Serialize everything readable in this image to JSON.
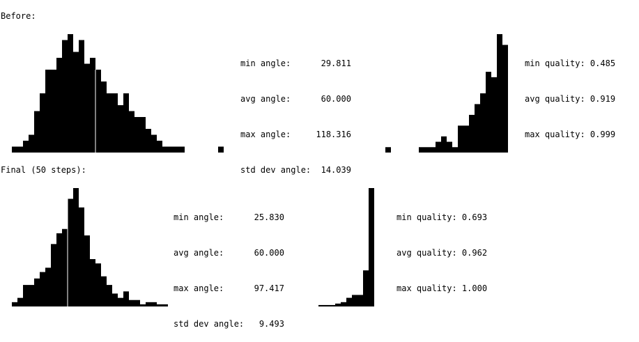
{
  "sections": [
    {
      "heading": "Before:",
      "angle_stats": {
        "min": "min angle:      29.811",
        "avg": "avg angle:      60.000",
        "max": "max angle:     118.316",
        "std": "std dev angle:  14.039"
      },
      "quality_stats": {
        "min": "min quality: 0.485",
        "avg": "avg quality: 0.919",
        "max": "max quality: 0.999"
      }
    },
    {
      "heading": "Final (50 steps):",
      "angle_stats": {
        "min": "min angle:      25.830",
        "avg": "avg angle:      60.000",
        "max": "max angle:      97.417",
        "std": "std dev angle:   9.493"
      },
      "quality_stats": {
        "min": "min quality: 0.693",
        "avg": "avg quality: 0.962",
        "max": "max quality: 1.000"
      }
    }
  ],
  "chart_data": [
    {
      "type": "bar",
      "subject": "angle histogram (before)",
      "xlim": [
        0,
        32
      ],
      "mean_marker": 15,
      "values": [
        1,
        1,
        2,
        3,
        7,
        10,
        14,
        14,
        16,
        19,
        20,
        17,
        19,
        15,
        16,
        14,
        12,
        10,
        10,
        8,
        10,
        7,
        6,
        6,
        4,
        3,
        2,
        1,
        1,
        1,
        1,
        0,
        0,
        0,
        0,
        0,
        0,
        1
      ]
    },
    {
      "type": "bar",
      "subject": "quality histogram (before)",
      "xlim": [
        0,
        21
      ],
      "values": [
        1,
        0,
        0,
        0,
        0,
        0,
        1,
        1,
        1,
        2,
        3,
        2,
        1,
        5,
        5,
        7,
        9,
        11,
        15,
        14,
        22,
        20
      ]
    },
    {
      "type": "bar",
      "subject": "angle histogram (final)",
      "xlim": [
        0,
        25
      ],
      "mean_marker": 10,
      "values": [
        2,
        4,
        10,
        10,
        13,
        16,
        18,
        29,
        34,
        36,
        50,
        55,
        46,
        33,
        22,
        20,
        14,
        10,
        6,
        4,
        7,
        3,
        3,
        1,
        2,
        2,
        1,
        1
      ]
    },
    {
      "type": "bar",
      "subject": "quality histogram (final)",
      "xlim": [
        0,
        10
      ],
      "values": [
        1,
        1,
        1,
        2,
        3,
        6,
        8,
        8,
        25,
        82
      ]
    }
  ]
}
